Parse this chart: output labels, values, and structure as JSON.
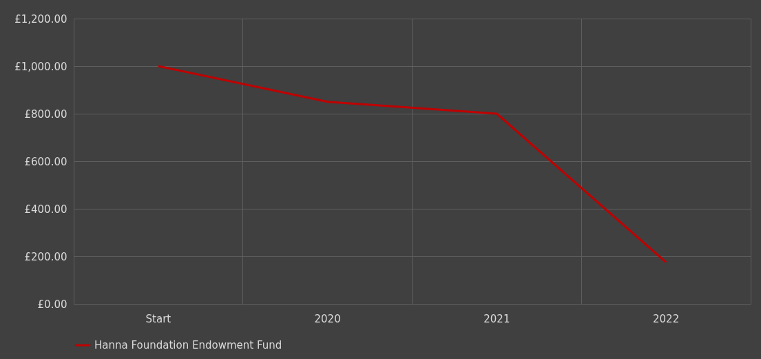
{
  "chart_data": {
    "type": "line",
    "categories": [
      "Start",
      "2020",
      "2021",
      "2022"
    ],
    "series": [
      {
        "name": "Hanna Foundation Endowment Fund",
        "color": "#c00000",
        "values": [
          1000,
          850,
          800,
          175
        ]
      }
    ],
    "ylim": [
      0,
      1200
    ],
    "yticks": [
      {
        "value": 0,
        "label": "£0.00"
      },
      {
        "value": 200,
        "label": "£200.00"
      },
      {
        "value": 400,
        "label": "£400.00"
      },
      {
        "value": 600,
        "label": "£600.00"
      },
      {
        "value": 800,
        "label": "£800.00"
      },
      {
        "value": 1000,
        "label": "£1,000.00"
      },
      {
        "value": 1200,
        "label": "£1,200.00"
      }
    ],
    "grid": true,
    "legend": "bottom",
    "marker": "none",
    "line_style": "solid"
  }
}
